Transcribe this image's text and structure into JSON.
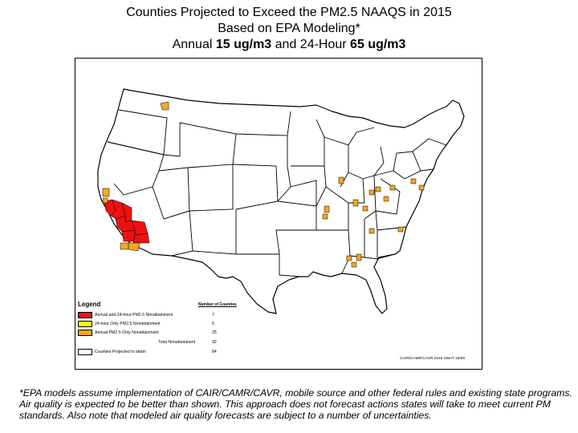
{
  "header": {
    "title_line1": "Counties Projected to Exceed the PM2.5 NAAQS in 2015",
    "title_line2": "Based on EPA Modeling*",
    "title_line3_pre": "Annual ",
    "title_line3_annual": "15 ug/m3",
    "title_line3_mid": " and 24-Hour ",
    "title_line3_daily": "65 ug/m3"
  },
  "legend": {
    "title": "Legend",
    "count_header": "Number of Counties",
    "rows": [
      {
        "label": "Annual and 24-hour PM2.5 Nonattainment",
        "count": "7",
        "color": "#ee1111"
      },
      {
        "label": "24-hour Only PM2.5 Nonattainment",
        "count": "0",
        "color": "#ffff00"
      },
      {
        "label": "Annual PM2.5 Only Nonattainment",
        "count": "25",
        "color": "#f5a623"
      }
    ],
    "total_label": "Total Nonattainment",
    "total_count": "32",
    "attain_label": "Counties Projected to attain",
    "attain_count": "84",
    "attain_color": "#ffffff"
  },
  "credit": "CAIR/CAMR/CAVR 2015 SMAT 16/65",
  "footnote": "*EPA models assume implementation of CAIR/CAMR/CAVR, mobile source and other federal rules and existing state programs. Air quality is expected to be better than shown. This approach does not forecast actions states will take to meet current PM standards. Also note that modeled air quality forecasts are subject to a number of uncertainties.",
  "map": {
    "colors": {
      "both": "#ee1111",
      "annual_only": "#f5a623",
      "daily_only": "#ffff00",
      "land": "#ffffff",
      "border": "#000000"
    }
  }
}
